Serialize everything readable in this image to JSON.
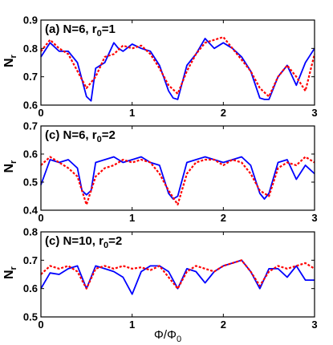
{
  "x_axis_label": {
    "main": "Φ/Φ",
    "sub": "0"
  },
  "chart_data": [
    {
      "type": "line",
      "title_main": "(a) N=6, r",
      "title_sub": "0",
      "title_rest": "=1",
      "ylabel_main": "N",
      "ylabel_sub": "r",
      "xlim": [
        0,
        3
      ],
      "ylim": [
        0.6,
        0.9
      ],
      "xticks": [
        0,
        1,
        2,
        3
      ],
      "yticks": [
        0.6,
        0.7,
        0.8,
        0.9
      ],
      "series": [
        {
          "style": "solid",
          "color": "#0000ff",
          "x": [
            0,
            0.1,
            0.2,
            0.3,
            0.4,
            0.5,
            0.55,
            0.6,
            0.7,
            0.8,
            0.85,
            0.9,
            1.0,
            1.1,
            1.2,
            1.3,
            1.4,
            1.45,
            1.5,
            1.6,
            1.7,
            1.8,
            1.9,
            2.0,
            2.1,
            2.2,
            2.3,
            2.4,
            2.45,
            2.5,
            2.6,
            2.7,
            2.8,
            2.9,
            3.0
          ],
          "values": [
            0.77,
            0.82,
            0.79,
            0.79,
            0.75,
            0.63,
            0.615,
            0.73,
            0.75,
            0.82,
            0.8,
            0.79,
            0.815,
            0.8,
            0.79,
            0.74,
            0.65,
            0.625,
            0.62,
            0.74,
            0.78,
            0.835,
            0.8,
            0.82,
            0.8,
            0.77,
            0.72,
            0.625,
            0.62,
            0.62,
            0.7,
            0.74,
            0.67,
            0.75,
            0.8
          ]
        },
        {
          "style": "dotted",
          "color": "#ff0000",
          "x": [
            0,
            0.1,
            0.2,
            0.3,
            0.4,
            0.5,
            0.6,
            0.7,
            0.8,
            0.9,
            1.0,
            1.1,
            1.2,
            1.3,
            1.4,
            1.5,
            1.6,
            1.7,
            1.8,
            1.9,
            2.0,
            2.1,
            2.2,
            2.3,
            2.4,
            2.5,
            2.6,
            2.7,
            2.8,
            2.9,
            3.0
          ],
          "values": [
            0.79,
            0.83,
            0.8,
            0.78,
            0.72,
            0.66,
            0.7,
            0.77,
            0.78,
            0.81,
            0.8,
            0.81,
            0.78,
            0.73,
            0.67,
            0.64,
            0.72,
            0.78,
            0.82,
            0.83,
            0.84,
            0.8,
            0.76,
            0.72,
            0.66,
            0.63,
            0.7,
            0.74,
            0.7,
            0.65,
            0.78
          ]
        }
      ]
    },
    {
      "type": "line",
      "title_main": "(c) N=6, r",
      "title_sub": "0",
      "title_rest": "=2",
      "ylabel_main": "N",
      "ylabel_sub": "r",
      "xlim": [
        0,
        3
      ],
      "ylim": [
        0.4,
        0.7
      ],
      "xticks": [
        0,
        1,
        2,
        3
      ],
      "yticks": [
        0.4,
        0.5,
        0.6,
        0.7
      ],
      "series": [
        {
          "style": "solid",
          "color": "#0000ff",
          "x": [
            0,
            0.1,
            0.2,
            0.3,
            0.4,
            0.45,
            0.5,
            0.55,
            0.6,
            0.7,
            0.8,
            0.9,
            1.0,
            1.1,
            1.2,
            1.3,
            1.4,
            1.45,
            1.5,
            1.6,
            1.7,
            1.8,
            1.9,
            2.0,
            2.1,
            2.2,
            2.3,
            2.4,
            2.45,
            2.5,
            2.6,
            2.7,
            2.8,
            2.9,
            3.0
          ],
          "values": [
            0.49,
            0.58,
            0.57,
            0.58,
            0.55,
            0.47,
            0.455,
            0.47,
            0.57,
            0.58,
            0.59,
            0.57,
            0.58,
            0.59,
            0.57,
            0.56,
            0.46,
            0.44,
            0.45,
            0.57,
            0.58,
            0.59,
            0.58,
            0.57,
            0.58,
            0.59,
            0.56,
            0.46,
            0.44,
            0.46,
            0.57,
            0.58,
            0.51,
            0.56,
            0.53
          ]
        },
        {
          "style": "dotted",
          "color": "#ff0000",
          "x": [
            0,
            0.1,
            0.2,
            0.3,
            0.4,
            0.5,
            0.6,
            0.7,
            0.8,
            0.9,
            1.0,
            1.1,
            1.2,
            1.3,
            1.4,
            1.5,
            1.6,
            1.7,
            1.8,
            1.9,
            2.0,
            2.1,
            2.2,
            2.3,
            2.4,
            2.5,
            2.6,
            2.7,
            2.8,
            2.9,
            3.0
          ],
          "values": [
            0.56,
            0.59,
            0.57,
            0.55,
            0.52,
            0.42,
            0.52,
            0.55,
            0.56,
            0.58,
            0.57,
            0.58,
            0.57,
            0.53,
            0.47,
            0.42,
            0.53,
            0.57,
            0.58,
            0.58,
            0.56,
            0.58,
            0.57,
            0.53,
            0.47,
            0.45,
            0.55,
            0.57,
            0.56,
            0.59,
            0.57
          ]
        }
      ]
    },
    {
      "type": "line",
      "title_main": "(c) N=10, r",
      "title_sub": "0",
      "title_rest": "=2",
      "ylabel_main": "N",
      "ylabel_sub": "r",
      "xlim": [
        0,
        3
      ],
      "ylim": [
        0.5,
        0.8
      ],
      "xticks": [
        0,
        1,
        2,
        3
      ],
      "yticks": [
        0.5,
        0.6,
        0.7,
        0.8
      ],
      "series": [
        {
          "style": "solid",
          "color": "#0000ff",
          "x": [
            0,
            0.1,
            0.2,
            0.3,
            0.4,
            0.5,
            0.6,
            0.7,
            0.8,
            0.9,
            1.0,
            1.1,
            1.2,
            1.3,
            1.4,
            1.5,
            1.6,
            1.7,
            1.8,
            1.9,
            2.0,
            2.1,
            2.2,
            2.3,
            2.4,
            2.5,
            2.6,
            2.7,
            2.8,
            2.9,
            3.0
          ],
          "values": [
            0.6,
            0.655,
            0.65,
            0.67,
            0.68,
            0.6,
            0.68,
            0.67,
            0.66,
            0.64,
            0.58,
            0.66,
            0.68,
            0.68,
            0.66,
            0.6,
            0.67,
            0.66,
            0.62,
            0.66,
            0.68,
            0.69,
            0.7,
            0.66,
            0.6,
            0.67,
            0.67,
            0.64,
            0.68,
            0.63,
            0.63
          ]
        },
        {
          "style": "dotted",
          "color": "#ff0000",
          "x": [
            0,
            0.1,
            0.2,
            0.3,
            0.4,
            0.5,
            0.6,
            0.7,
            0.8,
            0.9,
            1.0,
            1.1,
            1.2,
            1.3,
            1.4,
            1.5,
            1.6,
            1.7,
            1.8,
            1.9,
            2.0,
            2.1,
            2.2,
            2.3,
            2.4,
            2.5,
            2.6,
            2.7,
            2.8,
            2.9,
            3.0
          ],
          "values": [
            0.65,
            0.68,
            0.67,
            0.68,
            0.66,
            0.6,
            0.67,
            0.68,
            0.67,
            0.68,
            0.67,
            0.675,
            0.665,
            0.68,
            0.64,
            0.6,
            0.66,
            0.68,
            0.67,
            0.66,
            0.68,
            0.69,
            0.7,
            0.66,
            0.61,
            0.66,
            0.68,
            0.67,
            0.68,
            0.69,
            0.67
          ]
        }
      ]
    }
  ]
}
